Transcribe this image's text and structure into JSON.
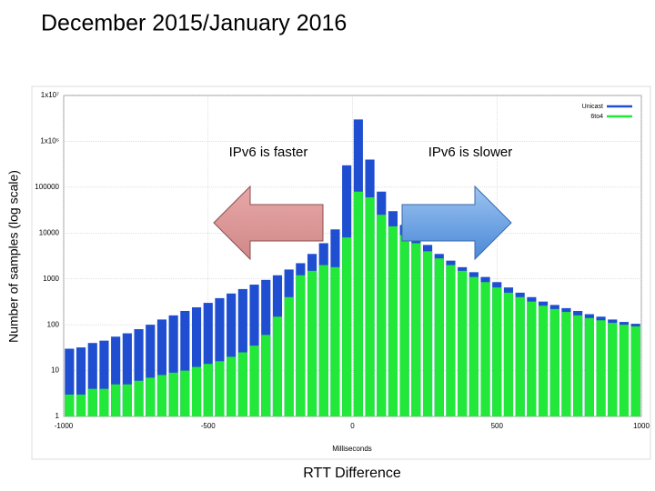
{
  "chart_data": {
    "type": "histogram",
    "title": "December 2015/January 2016",
    "y_label": "Number of samples (log scale)",
    "x_label": "Milliseconds",
    "x_caption": "RTT Difference",
    "annotations": [
      "IPv6 is faster",
      "IPv6 is slower"
    ],
    "bins": [
      -1000,
      -960,
      -920,
      -880,
      -840,
      -800,
      -760,
      -720,
      -680,
      -640,
      -600,
      -560,
      -520,
      -480,
      -440,
      -400,
      -360,
      -320,
      -280,
      -240,
      -200,
      -160,
      -120,
      -80,
      -40,
      0,
      40,
      80,
      120,
      160,
      200,
      240,
      280,
      320,
      360,
      400,
      440,
      480,
      520,
      560,
      600,
      640,
      680,
      720,
      760,
      800,
      840,
      880,
      920,
      960,
      1000
    ],
    "series": [
      {
        "name": "Unicast",
        "color": "#1f4fd0",
        "values": [
          30,
          32,
          40,
          45,
          55,
          65,
          80,
          100,
          130,
          160,
          200,
          240,
          300,
          380,
          480,
          600,
          750,
          950,
          1200,
          1600,
          2200,
          3500,
          6000,
          12000,
          300000,
          3000000,
          400000,
          80000,
          30000,
          15000,
          9000,
          5500,
          3500,
          2500,
          1800,
          1400,
          1100,
          850,
          650,
          500,
          400,
          320,
          270,
          230,
          200,
          170,
          150,
          130,
          115,
          105
        ]
      },
      {
        "name": "6to4",
        "color": "#22e83a",
        "values": [
          3,
          3,
          4,
          4,
          5,
          5,
          6,
          7,
          8,
          9,
          10,
          12,
          14,
          16,
          20,
          25,
          35,
          60,
          150,
          400,
          1200,
          1500,
          2000,
          1800,
          8000,
          80000,
          60000,
          25000,
          14000,
          9000,
          6000,
          4000,
          2800,
          2000,
          1500,
          1100,
          850,
          650,
          500,
          400,
          320,
          260,
          220,
          190,
          160,
          140,
          125,
          110,
          100,
          92
        ]
      }
    ],
    "xlim": [
      -1000,
      1000
    ],
    "xticks": [
      -1000,
      -500,
      0,
      500,
      1000
    ],
    "ylim": [
      1,
      10000000
    ],
    "y_scale": "log",
    "yticks": [
      {
        "value": 10000000,
        "label": "1x10⁷"
      },
      {
        "value": 1000000,
        "label": "1x10⁶"
      },
      100000,
      10000,
      1000,
      100,
      10,
      1
    ],
    "grid": true,
    "legend": "top-right"
  }
}
